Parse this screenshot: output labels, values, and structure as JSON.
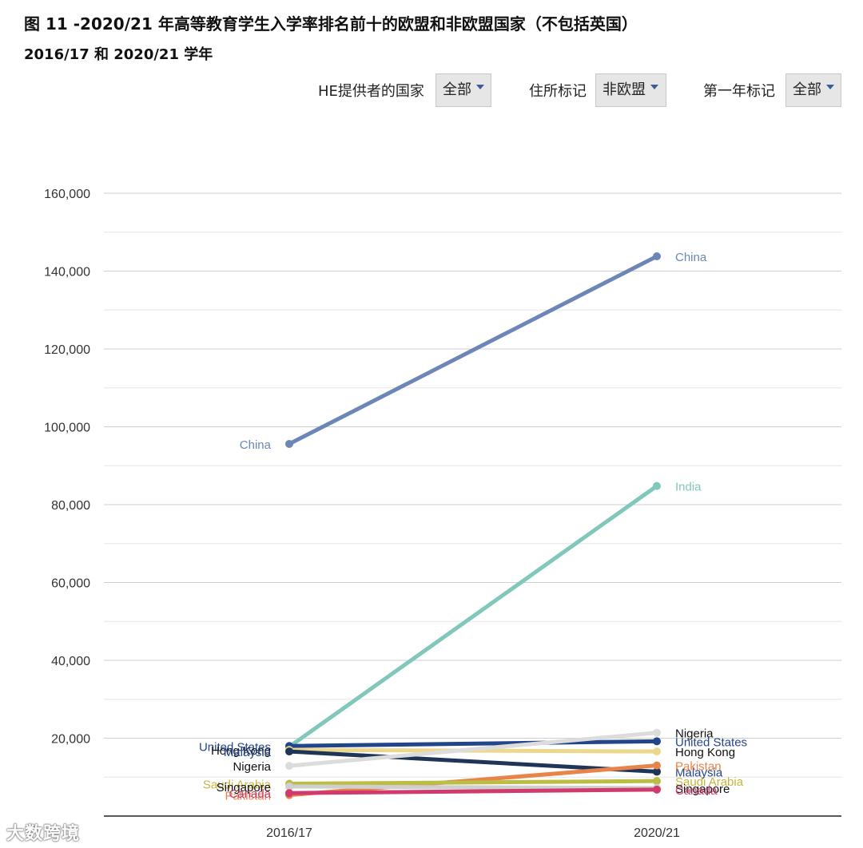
{
  "header": {
    "title": "图 11 -2020/21 年高等教育学生入学率排名前十的欧盟和非欧盟国家（不包括英国）",
    "subtitle": "2016/17 和 2020/21 学年"
  },
  "filters": [
    {
      "label": "HE提供者的国家",
      "value": "全部"
    },
    {
      "label": "住所标记",
      "value": "非欧盟"
    },
    {
      "label": "第一年标记",
      "value": "全部"
    }
  ],
  "watermark": "大数跨境",
  "chart_data": {
    "type": "line",
    "categories": [
      "2016/17",
      "2020/21"
    ],
    "ylim": [
      0,
      160000
    ],
    "yticks": [
      20000,
      40000,
      60000,
      80000,
      100000,
      120000,
      140000,
      160000
    ],
    "ytick_labels": [
      "20,000",
      "40,000",
      "60,000",
      "80,000",
      "100,000",
      "120,000",
      "140,000",
      "160,000"
    ],
    "grid": true,
    "series": [
      {
        "name": "China",
        "values": [
          95600,
          143800
        ],
        "color": "#6c87b7",
        "label_color": "#6c87b7",
        "show_left": true,
        "show_right": true
      },
      {
        "name": "India",
        "values": [
          17800,
          84800
        ],
        "color": "#82c7bb",
        "label_color": "#82c7bb",
        "show_left": false,
        "show_right": true
      },
      {
        "name": "United States",
        "values": [
          18000,
          19200
        ],
        "color": "#23458a",
        "label_color": "#23458a",
        "show_left": true,
        "show_right": true
      },
      {
        "name": "Hong Kong",
        "values": [
          17000,
          16600
        ],
        "color": "#ecd88c",
        "label_color": "#111111",
        "show_left": true,
        "show_right": true
      },
      {
        "name": "Malaysia",
        "values": [
          16600,
          11400
        ],
        "color": "#1f3558",
        "label_color": "#23458a",
        "show_left": true,
        "show_right": true
      },
      {
        "name": "Nigeria",
        "values": [
          12900,
          21400
        ],
        "color": "#dcdcdc",
        "label_color": "#111111",
        "show_left": true,
        "show_right": true
      },
      {
        "name": "Pakistan",
        "values": [
          5400,
          13000
        ],
        "color": "#e8834a",
        "label_color": "#e8834a",
        "show_left": true,
        "show_right": true
      },
      {
        "name": "Saudi Arabia",
        "values": [
          8300,
          9000
        ],
        "color": "#bcbd45",
        "label_color": "#c7b53c",
        "show_left": true,
        "show_right": true
      },
      {
        "name": "Singapore",
        "values": [
          7600,
          7200
        ],
        "color": "#cfcfcf",
        "label_color": "#111111",
        "show_left": true,
        "show_right": true
      },
      {
        "name": "Canada",
        "values": [
          5900,
          6800
        ],
        "color": "#d13a6c",
        "label_color": "#d13a6c",
        "show_left": true,
        "show_right": true
      }
    ]
  }
}
